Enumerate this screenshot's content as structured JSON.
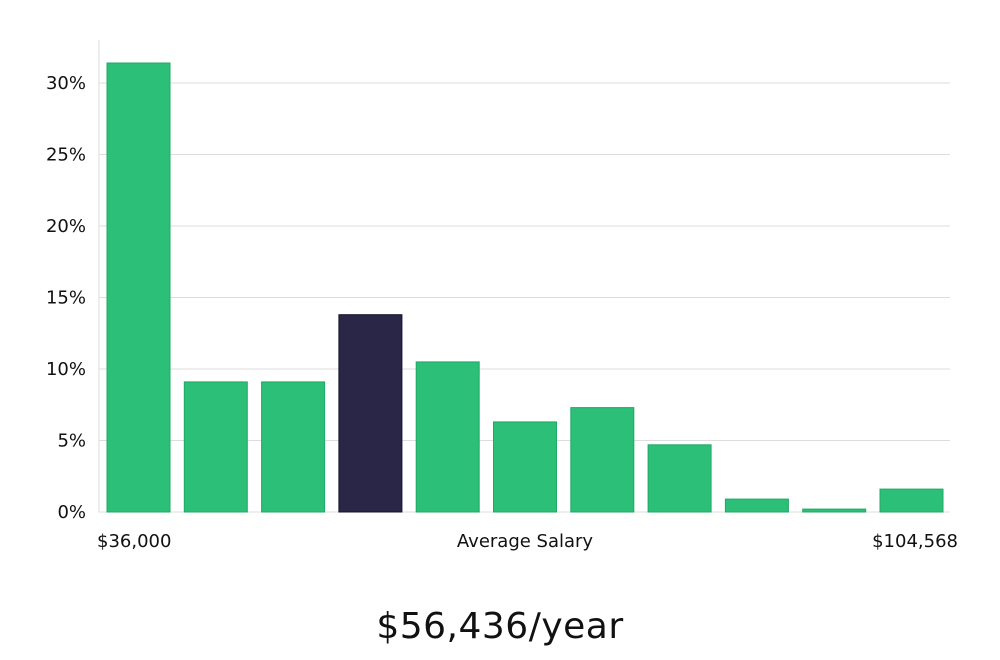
{
  "chart_data": {
    "type": "bar",
    "title": "",
    "xlabel": "Average Salary",
    "ylabel": "",
    "x_range_labels": {
      "min": "$36,000",
      "max": "$104,568"
    },
    "ylim": [
      0,
      33
    ],
    "yticks": [
      0,
      5,
      10,
      15,
      20,
      25,
      30
    ],
    "ytick_labels": [
      "0%",
      "5%",
      "10%",
      "15%",
      "20%",
      "25%",
      "30%"
    ],
    "values": [
      31.4,
      9.1,
      9.1,
      13.8,
      10.5,
      6.3,
      7.3,
      4.7,
      0.9,
      0.2,
      1.6
    ],
    "highlight_index": 3,
    "colors": {
      "bar": "#2bbf78",
      "highlight": "#2a2647",
      "grid": "#dddddd"
    },
    "grid": true
  },
  "headline": "$56,436/year"
}
